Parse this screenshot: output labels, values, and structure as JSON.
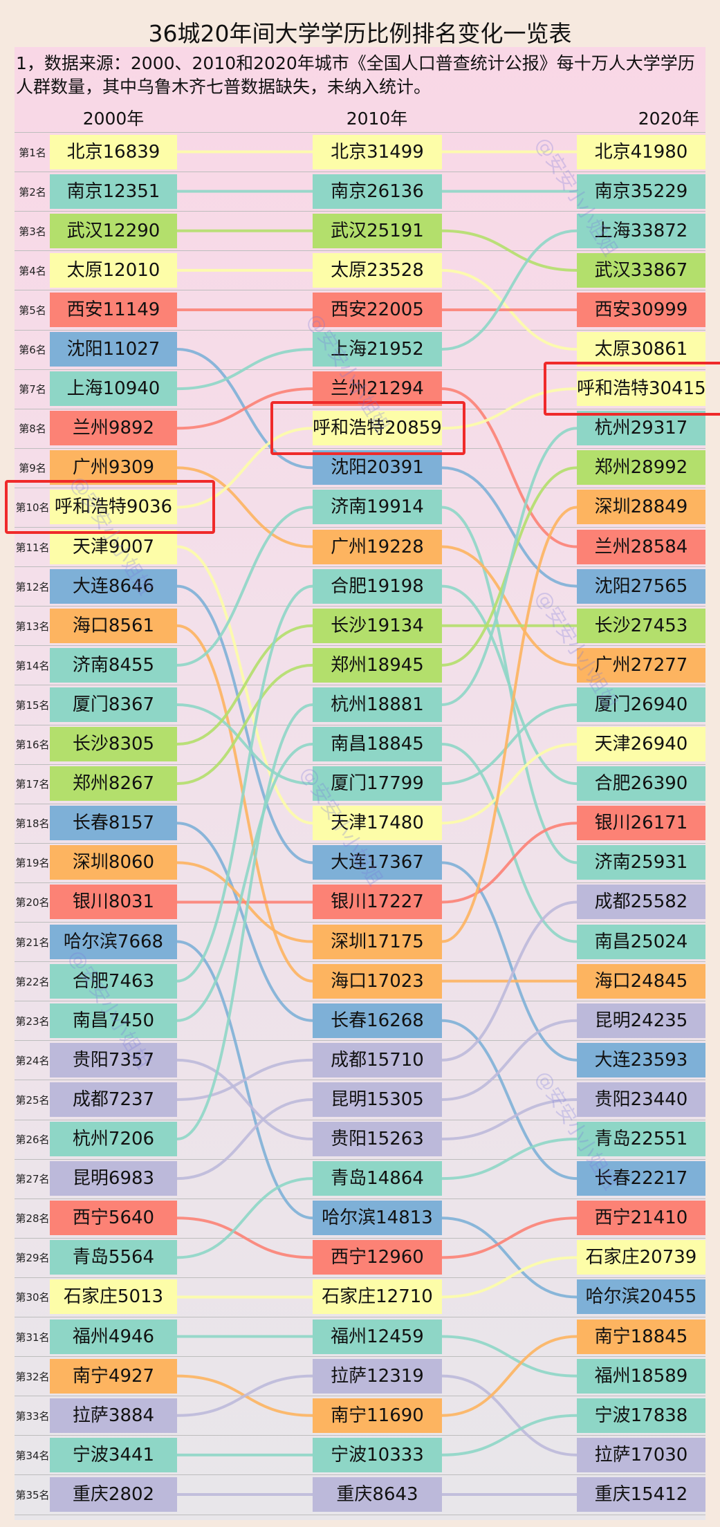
{
  "title": "36城20年间大学学历比例排名变化一览表",
  "note": "1，数据来源：2000、2010和2020年城市《全国人口普查统计公报》每十万人大学学历人群数量，其中乌鲁木齐七普数据缺失，未纳入统计。",
  "watermark": "@安安小小姐姐",
  "city_colors": {
    "北京": "#fdfda8",
    "南京": "#8ed6c6",
    "武汉": "#b3df6c",
    "太原": "#fdfda8",
    "西安": "#fc8275",
    "沈阳": "#7eb0d7",
    "上海": "#8ed6c6",
    "兰州": "#fc8275",
    "广州": "#fdb460",
    "呼和浩特": "#fdfda8",
    "天津": "#fdfda8",
    "大连": "#7eb0d7",
    "海口": "#fdb460",
    "济南": "#8ed6c6",
    "厦门": "#8ed6c6",
    "长沙": "#b3df6c",
    "郑州": "#b3df6c",
    "长春": "#7eb0d7",
    "深圳": "#fdb460",
    "银川": "#fc8275",
    "哈尔滨": "#7eb0d7",
    "合肥": "#8ed6c6",
    "南昌": "#8ed6c6",
    "贵阳": "#bcb9da",
    "成都": "#bcb9da",
    "杭州": "#8ed6c6",
    "昆明": "#bcb9da",
    "西宁": "#fc8275",
    "青岛": "#8ed6c6",
    "石家庄": "#fdfda8",
    "福州": "#8ed6c6",
    "南宁": "#fdb460",
    "拉萨": "#bcb9da",
    "宁波": "#8ed6c6",
    "重庆": "#bcb9da"
  },
  "chart_data": {
    "type": "table",
    "metric": "每十万人大学学历人群数量",
    "years": [
      "2000年",
      "2010年",
      "2020年"
    ],
    "ranks": [
      "第1名",
      "第2名",
      "第3名",
      "第4名",
      "第5名",
      "第6名",
      "第7名",
      "第8名",
      "第9名",
      "第10名",
      "第11名",
      "第12名",
      "第13名",
      "第14名",
      "第15名",
      "第16名",
      "第17名",
      "第18名",
      "第19名",
      "第20名",
      "第21名",
      "第22名",
      "第23名",
      "第24名",
      "第25名",
      "第26名",
      "第27名",
      "第28名",
      "第29名",
      "第30名",
      "第31名",
      "第32名",
      "第33名",
      "第34名",
      "第35名"
    ],
    "columns": [
      {
        "year": "2000年",
        "entries": [
          {
            "city": "北京",
            "value": 16839
          },
          {
            "city": "南京",
            "value": 12351
          },
          {
            "city": "武汉",
            "value": 12290
          },
          {
            "city": "太原",
            "value": 12010
          },
          {
            "city": "西安",
            "value": 11149
          },
          {
            "city": "沈阳",
            "value": 11027
          },
          {
            "city": "上海",
            "value": 10940
          },
          {
            "city": "兰州",
            "value": 9892
          },
          {
            "city": "广州",
            "value": 9309
          },
          {
            "city": "呼和浩特",
            "value": 9036
          },
          {
            "city": "天津",
            "value": 9007
          },
          {
            "city": "大连",
            "value": 8646
          },
          {
            "city": "海口",
            "value": 8561
          },
          {
            "city": "济南",
            "value": 8455
          },
          {
            "city": "厦门",
            "value": 8367
          },
          {
            "city": "长沙",
            "value": 8305
          },
          {
            "city": "郑州",
            "value": 8267
          },
          {
            "city": "长春",
            "value": 8157
          },
          {
            "city": "深圳",
            "value": 8060
          },
          {
            "city": "银川",
            "value": 8031
          },
          {
            "city": "哈尔滨",
            "value": 7668
          },
          {
            "city": "合肥",
            "value": 7463
          },
          {
            "city": "南昌",
            "value": 7450
          },
          {
            "city": "贵阳",
            "value": 7357
          },
          {
            "city": "成都",
            "value": 7237
          },
          {
            "city": "杭州",
            "value": 7206
          },
          {
            "city": "昆明",
            "value": 6983
          },
          {
            "city": "西宁",
            "value": 5640
          },
          {
            "city": "青岛",
            "value": 5564
          },
          {
            "city": "石家庄",
            "value": 5013
          },
          {
            "city": "福州",
            "value": 4946
          },
          {
            "city": "南宁",
            "value": 4927
          },
          {
            "city": "拉萨",
            "value": 3884
          },
          {
            "city": "宁波",
            "value": 3441
          },
          {
            "city": "重庆",
            "value": 2802
          }
        ]
      },
      {
        "year": "2010年",
        "entries": [
          {
            "city": "北京",
            "value": 31499
          },
          {
            "city": "南京",
            "value": 26136
          },
          {
            "city": "武汉",
            "value": 25191
          },
          {
            "city": "太原",
            "value": 23528
          },
          {
            "city": "西安",
            "value": 22005
          },
          {
            "city": "上海",
            "value": 21952
          },
          {
            "city": "兰州",
            "value": 21294
          },
          {
            "city": "呼和浩特",
            "value": 20859
          },
          {
            "city": "沈阳",
            "value": 20391
          },
          {
            "city": "济南",
            "value": 19914
          },
          {
            "city": "广州",
            "value": 19228
          },
          {
            "city": "合肥",
            "value": 19198
          },
          {
            "city": "长沙",
            "value": 19134
          },
          {
            "city": "郑州",
            "value": 18945
          },
          {
            "city": "杭州",
            "value": 18881
          },
          {
            "city": "南昌",
            "value": 18845
          },
          {
            "city": "厦门",
            "value": 17799
          },
          {
            "city": "天津",
            "value": 17480
          },
          {
            "city": "大连",
            "value": 17367
          },
          {
            "city": "银川",
            "value": 17227
          },
          {
            "city": "深圳",
            "value": 17175
          },
          {
            "city": "海口",
            "value": 17023
          },
          {
            "city": "长春",
            "value": 16268
          },
          {
            "city": "成都",
            "value": 15710
          },
          {
            "city": "昆明",
            "value": 15305
          },
          {
            "city": "贵阳",
            "value": 15263
          },
          {
            "city": "青岛",
            "value": 14864
          },
          {
            "city": "哈尔滨",
            "value": 14813
          },
          {
            "city": "西宁",
            "value": 12960
          },
          {
            "city": "石家庄",
            "value": 12710
          },
          {
            "city": "福州",
            "value": 12459
          },
          {
            "city": "拉萨",
            "value": 12319
          },
          {
            "city": "南宁",
            "value": 11690
          },
          {
            "city": "宁波",
            "value": 10333
          },
          {
            "city": "重庆",
            "value": 8643
          }
        ]
      },
      {
        "year": "2020年",
        "entries": [
          {
            "city": "北京",
            "value": 41980
          },
          {
            "city": "南京",
            "value": 35229
          },
          {
            "city": "上海",
            "value": 33872
          },
          {
            "city": "武汉",
            "value": 33867
          },
          {
            "city": "西安",
            "value": 30999
          },
          {
            "city": "太原",
            "value": 30861
          },
          {
            "city": "呼和浩特",
            "value": 30415
          },
          {
            "city": "杭州",
            "value": 29317
          },
          {
            "city": "郑州",
            "value": 28992
          },
          {
            "city": "深圳",
            "value": 28849
          },
          {
            "city": "兰州",
            "value": 28584
          },
          {
            "city": "沈阳",
            "value": 27565
          },
          {
            "city": "长沙",
            "value": 27453
          },
          {
            "city": "广州",
            "value": 27277
          },
          {
            "city": "厦门",
            "value": 26940
          },
          {
            "city": "天津",
            "value": 26940
          },
          {
            "city": "合肥",
            "value": 26390
          },
          {
            "city": "银川",
            "value": 26171
          },
          {
            "city": "济南",
            "value": 25931
          },
          {
            "city": "成都",
            "value": 25582
          },
          {
            "city": "南昌",
            "value": 25024
          },
          {
            "city": "海口",
            "value": 24845
          },
          {
            "city": "昆明",
            "value": 24235
          },
          {
            "city": "大连",
            "value": 23593
          },
          {
            "city": "贵阳",
            "value": 23440
          },
          {
            "city": "青岛",
            "value": 22551
          },
          {
            "city": "长春",
            "value": 22217
          },
          {
            "city": "西宁",
            "value": 21410
          },
          {
            "city": "石家庄",
            "value": 20739
          },
          {
            "city": "哈尔滨",
            "value": 20455
          },
          {
            "city": "南宁",
            "value": 18845
          },
          {
            "city": "福州",
            "value": 18589
          },
          {
            "city": "宁波",
            "value": 17838
          },
          {
            "city": "拉萨",
            "value": 17030
          },
          {
            "city": "重庆",
            "value": 15412
          }
        ]
      }
    ],
    "highlighted": [
      {
        "year": "2000年",
        "city": "呼和浩特"
      },
      {
        "year": "2010年",
        "city": "呼和浩特"
      },
      {
        "year": "2020年",
        "city": "呼和浩特"
      }
    ]
  }
}
